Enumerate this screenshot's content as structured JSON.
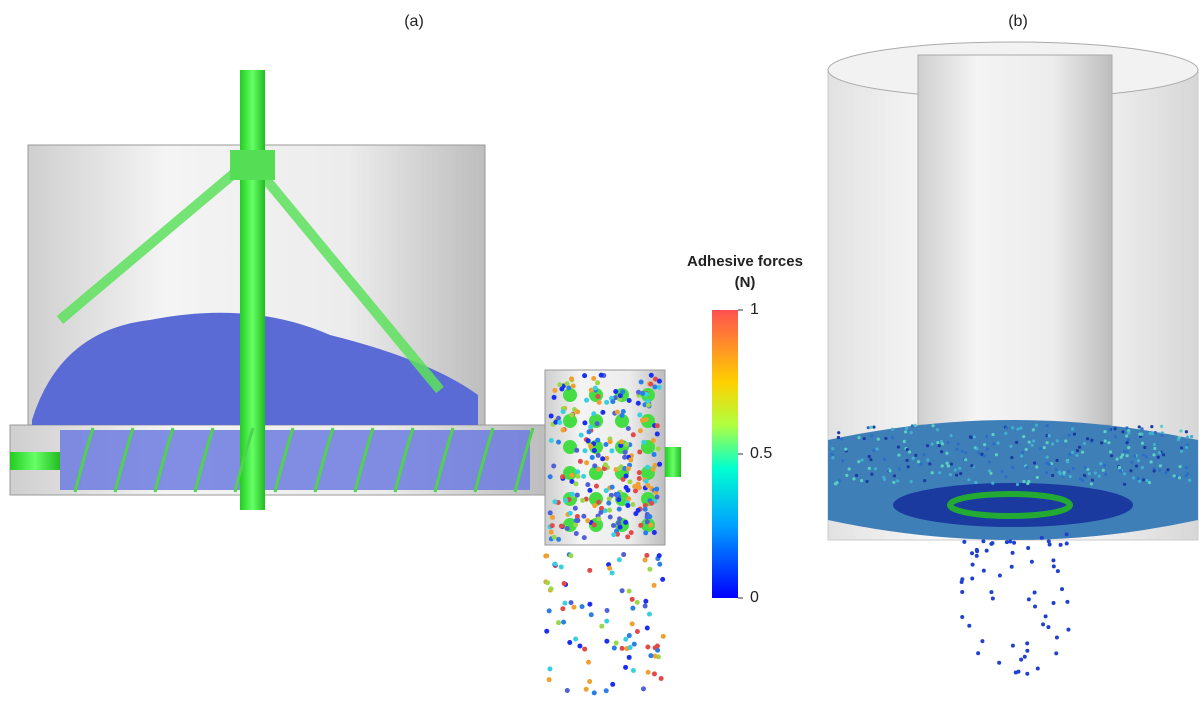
{
  "panels": [
    {
      "label": "(a)"
    },
    {
      "label": "(b)"
    }
  ],
  "colorbar": {
    "title": "Adhesive forces",
    "unit": "(N)",
    "lim": [
      0,
      1
    ],
    "ticks": [
      0,
      0.5,
      1
    ]
  }
}
